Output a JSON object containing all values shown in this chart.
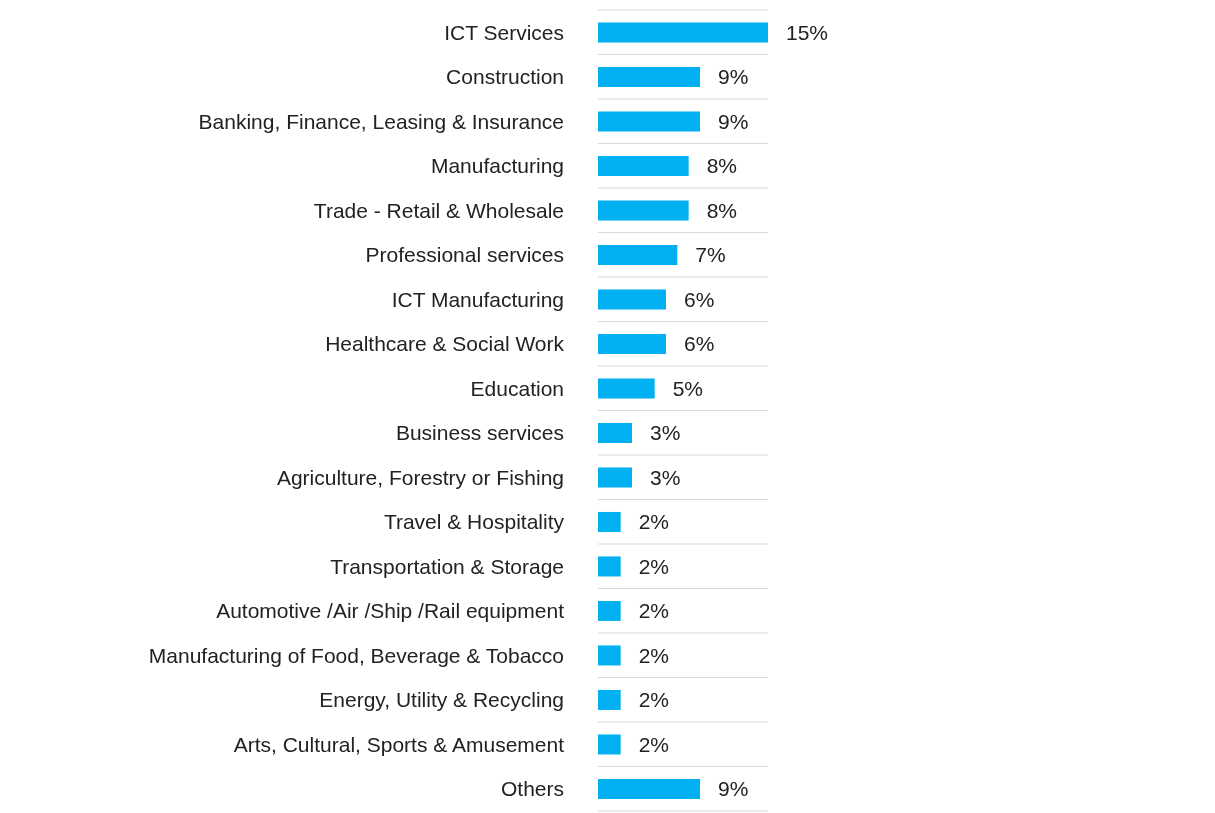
{
  "chart_data": {
    "type": "bar",
    "orientation": "horizontal",
    "categories": [
      "ICT Services",
      "Construction",
      "Banking, Finance, Leasing & Insurance",
      "Manufacturing",
      "Trade - Retail & Wholesale",
      "Professional services",
      "ICT Manufacturing",
      "Healthcare & Social Work",
      "Education",
      "Business services",
      "Agriculture, Forestry or Fishing",
      "Travel & Hospitality",
      "Transportation & Storage",
      "Automotive /Air /Ship /Rail equipment",
      "Manufacturing of Food, Beverage & Tobacco",
      "Energy, Utility & Recycling",
      "Arts, Cultural, Sports & Amusement",
      "Others"
    ],
    "values": [
      15,
      9,
      9,
      8,
      8,
      7,
      6,
      6,
      5,
      3,
      3,
      2,
      2,
      2,
      2,
      2,
      2,
      9
    ],
    "value_labels": [
      "15%",
      "9%",
      "9%",
      "8%",
      "8%",
      "7%",
      "6%",
      "6%",
      "5%",
      "3%",
      "3%",
      "2%",
      "2%",
      "2%",
      "2%",
      "2%",
      "2%",
      "9%"
    ],
    "color": "#00b0f0",
    "grid": "y"
  }
}
